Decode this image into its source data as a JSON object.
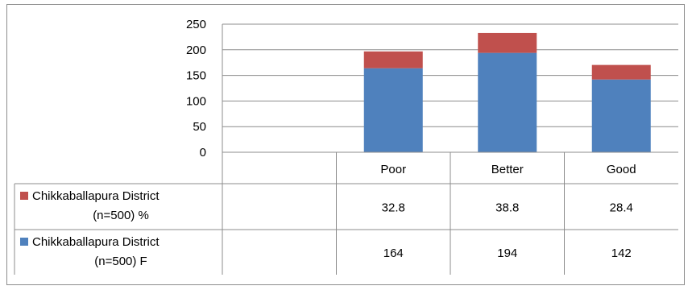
{
  "chart_data": {
    "type": "bar",
    "stacked": true,
    "categories": [
      "Poor",
      "Better",
      "Good"
    ],
    "series": [
      {
        "name": "Chikkaballapura District (n=500) F",
        "name_lines": [
          "Chikkaballapura District",
          "(n=500) F"
        ],
        "values": [
          164,
          194,
          142
        ],
        "value_labels": [
          "164",
          "194",
          "142"
        ],
        "color": "#4F81BD"
      },
      {
        "name": "Chikkaballapura District (n=500) %",
        "name_lines": [
          "Chikkaballapura District",
          "(n=500) %"
        ],
        "values": [
          32.8,
          38.8,
          28.4
        ],
        "value_labels": [
          "32.8",
          "38.8",
          "28.4"
        ],
        "color": "#C0504D"
      }
    ],
    "yticks": [
      "0",
      "50",
      "100",
      "150",
      "200",
      "250"
    ],
    "ylim": [
      0,
      250
    ],
    "grid": true,
    "legend": "data-table"
  }
}
